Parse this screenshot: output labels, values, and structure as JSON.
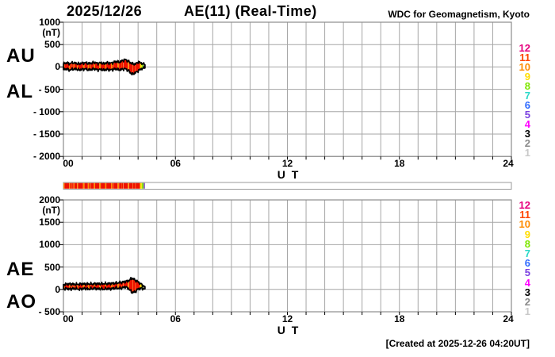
{
  "header": {
    "date": "2025/12/26",
    "title": "AE(11) (Real-Time)",
    "source": "WDC for Geomagnetism, Kyoto"
  },
  "footer": {
    "created": "[Created at 2025-12-26 04:20UT]"
  },
  "station_count_legend": {
    "entries": [
      {
        "label": "12",
        "color": "#e6007e"
      },
      {
        "label": "11",
        "color": "#ff4500"
      },
      {
        "label": "10",
        "color": "#ff8c00"
      },
      {
        "label": "9",
        "color": "#ffdd00"
      },
      {
        "label": "8",
        "color": "#7ee600"
      },
      {
        "label": "7",
        "color": "#2ad8c8"
      },
      {
        "label": "6",
        "color": "#2f6bff"
      },
      {
        "label": "5",
        "color": "#7a40e0"
      },
      {
        "label": "4",
        "color": "#ff00ff"
      },
      {
        "label": "3",
        "color": "#000000"
      },
      {
        "label": "2",
        "color": "#8a8a8a"
      },
      {
        "label": "1",
        "color": "#c9c9c9"
      }
    ]
  },
  "panels": {
    "top": {
      "left_labels": [
        "AU",
        "AL"
      ],
      "unit_label": "(nT)",
      "y_tick_labels": [
        "1000",
        "500",
        "0",
        "- 500",
        "- 1000",
        "- 1500",
        "- 2000"
      ],
      "x_tick_labels": [
        "00",
        "06",
        "12",
        "18",
        "24"
      ],
      "x_axis_label": "U T"
    },
    "bottom": {
      "left_labels": [
        "AE",
        "AO"
      ],
      "unit_label": "(nT)",
      "y_tick_labels": [
        "2000",
        "1500",
        "1000",
        "500",
        "0",
        "- 500"
      ],
      "x_tick_labels": [
        "00",
        "06",
        "12",
        "18",
        "24"
      ],
      "x_axis_label": "U T"
    }
  },
  "chart_data": [
    {
      "type": "area",
      "name": "AU / AL auroral electrojet indices, band filled with per-minute station-count color",
      "xlabel": "U T",
      "ylabel": "(nT)",
      "xlim_hours": [
        0,
        24
      ],
      "ylim": [
        -2000,
        1000
      ],
      "x_tick_hours": [
        0,
        6,
        12,
        18,
        24
      ],
      "y_tick_step": 500,
      "grid": true,
      "data_end_hour": 4.37,
      "x_hours": [
        0,
        0.17,
        0.33,
        0.5,
        0.67,
        0.83,
        1,
        1.17,
        1.33,
        1.5,
        1.67,
        1.83,
        2,
        2.17,
        2.33,
        2.5,
        2.67,
        2.83,
        3,
        3.17,
        3.33,
        3.5,
        3.67,
        3.83,
        4,
        4.17,
        4.37
      ],
      "series": [
        {
          "name": "AU",
          "values": [
            70,
            92,
            75,
            95,
            82,
            70,
            86,
            96,
            76,
            86,
            100,
            80,
            92,
            74,
            96,
            84,
            100,
            122,
            108,
            142,
            168,
            118,
            78,
            58,
            112,
            88,
            48
          ]
        },
        {
          "name": "AL",
          "values": [
            -60,
            -44,
            -70,
            -50,
            -46,
            -66,
            -54,
            -44,
            -66,
            -54,
            -44,
            -66,
            -54,
            -70,
            -54,
            -66,
            -54,
            -44,
            -66,
            -50,
            -40,
            -90,
            -160,
            -140,
            -88,
            -40,
            -24
          ]
        }
      ]
    },
    {
      "type": "area",
      "name": "AE / AO auroral electrojet indices, band filled with per-minute station-count color",
      "xlabel": "U T",
      "ylabel": "(nT)",
      "xlim_hours": [
        0,
        24
      ],
      "ylim": [
        -500,
        2000
      ],
      "x_tick_hours": [
        0,
        6,
        12,
        18,
        24
      ],
      "y_tick_step": 500,
      "grid": true,
      "data_end_hour": 4.37,
      "x_hours": [
        0,
        0.17,
        0.33,
        0.5,
        0.67,
        0.83,
        1,
        1.17,
        1.33,
        1.5,
        1.67,
        1.83,
        2,
        2.17,
        2.33,
        2.5,
        2.67,
        2.83,
        3,
        3.17,
        3.33,
        3.5,
        3.67,
        3.83,
        4,
        4.17,
        4.37
      ],
      "series": [
        {
          "name": "AE",
          "values": [
            110,
            118,
            120,
            118,
            112,
            118,
            122,
            120,
            124,
            120,
            126,
            124,
            126,
            128,
            128,
            132,
            134,
            142,
            148,
            162,
            176,
            196,
            252,
            212,
            170,
            112,
            62
          ]
        },
        {
          "name": "AO",
          "values": [
            6,
            20,
            4,
            18,
            16,
            4,
            12,
            22,
            6,
            12,
            26,
            8,
            16,
            2,
            18,
            10,
            20,
            32,
            20,
            38,
            56,
            14,
            -70,
            -58,
            10,
            22,
            12
          ]
        }
      ]
    },
    {
      "type": "heatmap",
      "name": "per-minute station-count color strip (00-24 UT frame, data to 04:20)",
      "xlim_hours": [
        0,
        24
      ],
      "segments": [
        {
          "from_h": 0.0,
          "to_h": 0.06,
          "color": "#ff8c00"
        },
        {
          "from_h": 0.06,
          "to_h": 0.31,
          "color": "#ee1100"
        },
        {
          "from_h": 0.31,
          "to_h": 0.36,
          "color": "#ff8c00"
        },
        {
          "from_h": 0.36,
          "to_h": 0.45,
          "color": "#ee1100"
        },
        {
          "from_h": 0.45,
          "to_h": 0.47,
          "color": "#ff8c00"
        },
        {
          "from_h": 0.47,
          "to_h": 0.54,
          "color": "#ee1100"
        },
        {
          "from_h": 0.54,
          "to_h": 0.59,
          "color": "#ff8c00"
        },
        {
          "from_h": 0.59,
          "to_h": 0.73,
          "color": "#ee1100"
        },
        {
          "from_h": 0.73,
          "to_h": 0.78,
          "color": "#ff8c00"
        },
        {
          "from_h": 0.78,
          "to_h": 1.05,
          "color": "#ee1100"
        },
        {
          "from_h": 1.05,
          "to_h": 1.13,
          "color": "#ff8c00"
        },
        {
          "from_h": 1.13,
          "to_h": 1.31,
          "color": "#ee1100"
        },
        {
          "from_h": 1.31,
          "to_h": 1.38,
          "color": "#ff8c00"
        },
        {
          "from_h": 1.38,
          "to_h": 1.45,
          "color": "#ee1100"
        },
        {
          "from_h": 1.45,
          "to_h": 1.47,
          "color": "#ff8c00"
        },
        {
          "from_h": 1.47,
          "to_h": 1.63,
          "color": "#ee1100"
        },
        {
          "from_h": 1.63,
          "to_h": 1.7,
          "color": "#ff8c00"
        },
        {
          "from_h": 1.7,
          "to_h": 1.92,
          "color": "#ee1100"
        },
        {
          "from_h": 1.92,
          "to_h": 2.0,
          "color": "#ff8c00"
        },
        {
          "from_h": 2.0,
          "to_h": 2.23,
          "color": "#ee1100"
        },
        {
          "from_h": 2.23,
          "to_h": 2.3,
          "color": "#ff8c00"
        },
        {
          "from_h": 2.3,
          "to_h": 2.55,
          "color": "#ee1100"
        },
        {
          "from_h": 2.55,
          "to_h": 2.62,
          "color": "#ff8c00"
        },
        {
          "from_h": 2.62,
          "to_h": 2.7,
          "color": "#ee1100"
        },
        {
          "from_h": 2.7,
          "to_h": 2.72,
          "color": "#ff8c00"
        },
        {
          "from_h": 2.72,
          "to_h": 2.9,
          "color": "#ee1100"
        },
        {
          "from_h": 2.9,
          "to_h": 2.98,
          "color": "#ff8c00"
        },
        {
          "from_h": 2.98,
          "to_h": 3.1,
          "color": "#ee1100"
        },
        {
          "from_h": 3.1,
          "to_h": 3.12,
          "color": "#ff8c00"
        },
        {
          "from_h": 3.12,
          "to_h": 3.2,
          "color": "#ee1100"
        },
        {
          "from_h": 3.2,
          "to_h": 3.22,
          "color": "#ff8c00"
        },
        {
          "from_h": 3.22,
          "to_h": 3.45,
          "color": "#ee1100"
        },
        {
          "from_h": 3.45,
          "to_h": 3.52,
          "color": "#ff8c00"
        },
        {
          "from_h": 3.52,
          "to_h": 3.7,
          "color": "#ee1100"
        },
        {
          "from_h": 3.7,
          "to_h": 3.72,
          "color": "#ff8c00"
        },
        {
          "from_h": 3.72,
          "to_h": 3.85,
          "color": "#ee1100"
        },
        {
          "from_h": 3.85,
          "to_h": 3.87,
          "color": "#ff8c00"
        },
        {
          "from_h": 3.87,
          "to_h": 4.1,
          "color": "#ee1100"
        },
        {
          "from_h": 4.1,
          "to_h": 4.2,
          "color": "#ffe000"
        },
        {
          "from_h": 4.2,
          "to_h": 4.29,
          "color": "#86e014"
        },
        {
          "from_h": 4.29,
          "to_h": 4.37,
          "color": "#8a62c0"
        }
      ]
    }
  ]
}
